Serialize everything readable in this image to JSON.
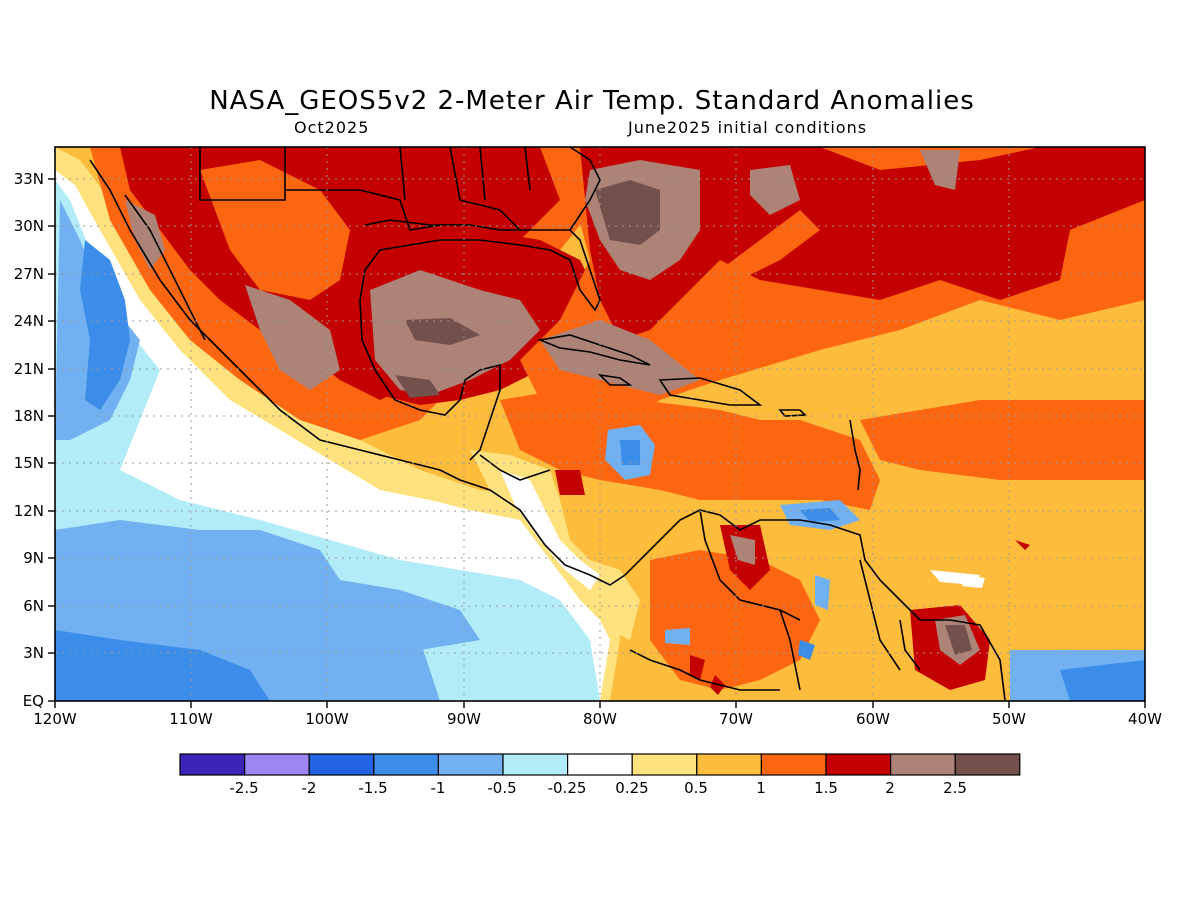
{
  "header": {
    "title": "NASA_GEOS5v2 2-Meter Air Temp. Standard Anomalies",
    "subtitle_left": "Oct2025",
    "subtitle_right": "June2025 initial conditions"
  },
  "map": {
    "lon_labels": [
      "120W",
      "110W",
      "100W",
      "90W",
      "80W",
      "70W",
      "60W",
      "50W",
      "40W"
    ],
    "lat_labels": [
      "33N",
      "30N",
      "27N",
      "24N",
      "21N",
      "18N",
      "15N",
      "12N",
      "9N",
      "6N",
      "3N",
      "EQ"
    ],
    "lon_range": [
      -120,
      -40
    ],
    "lat_range": [
      0,
      35
    ],
    "gridlines": true
  },
  "colorbar": {
    "colors": [
      "#3b25b8",
      "#9c86f2",
      "#2264e2",
      "#3c8de9",
      "#72b1f1",
      "#b1ecf8",
      "#ffffff",
      "#ffe27e",
      "#fdbc3c",
      "#fd6610",
      "#c50000",
      "#ad8378",
      "#73504b"
    ],
    "labels": [
      "-2.5",
      "-2",
      "-1.5",
      "-1",
      "-0.5",
      "-0.25",
      "0.25",
      "0.5",
      "1",
      "1.5",
      "2",
      "2.5"
    ]
  }
}
